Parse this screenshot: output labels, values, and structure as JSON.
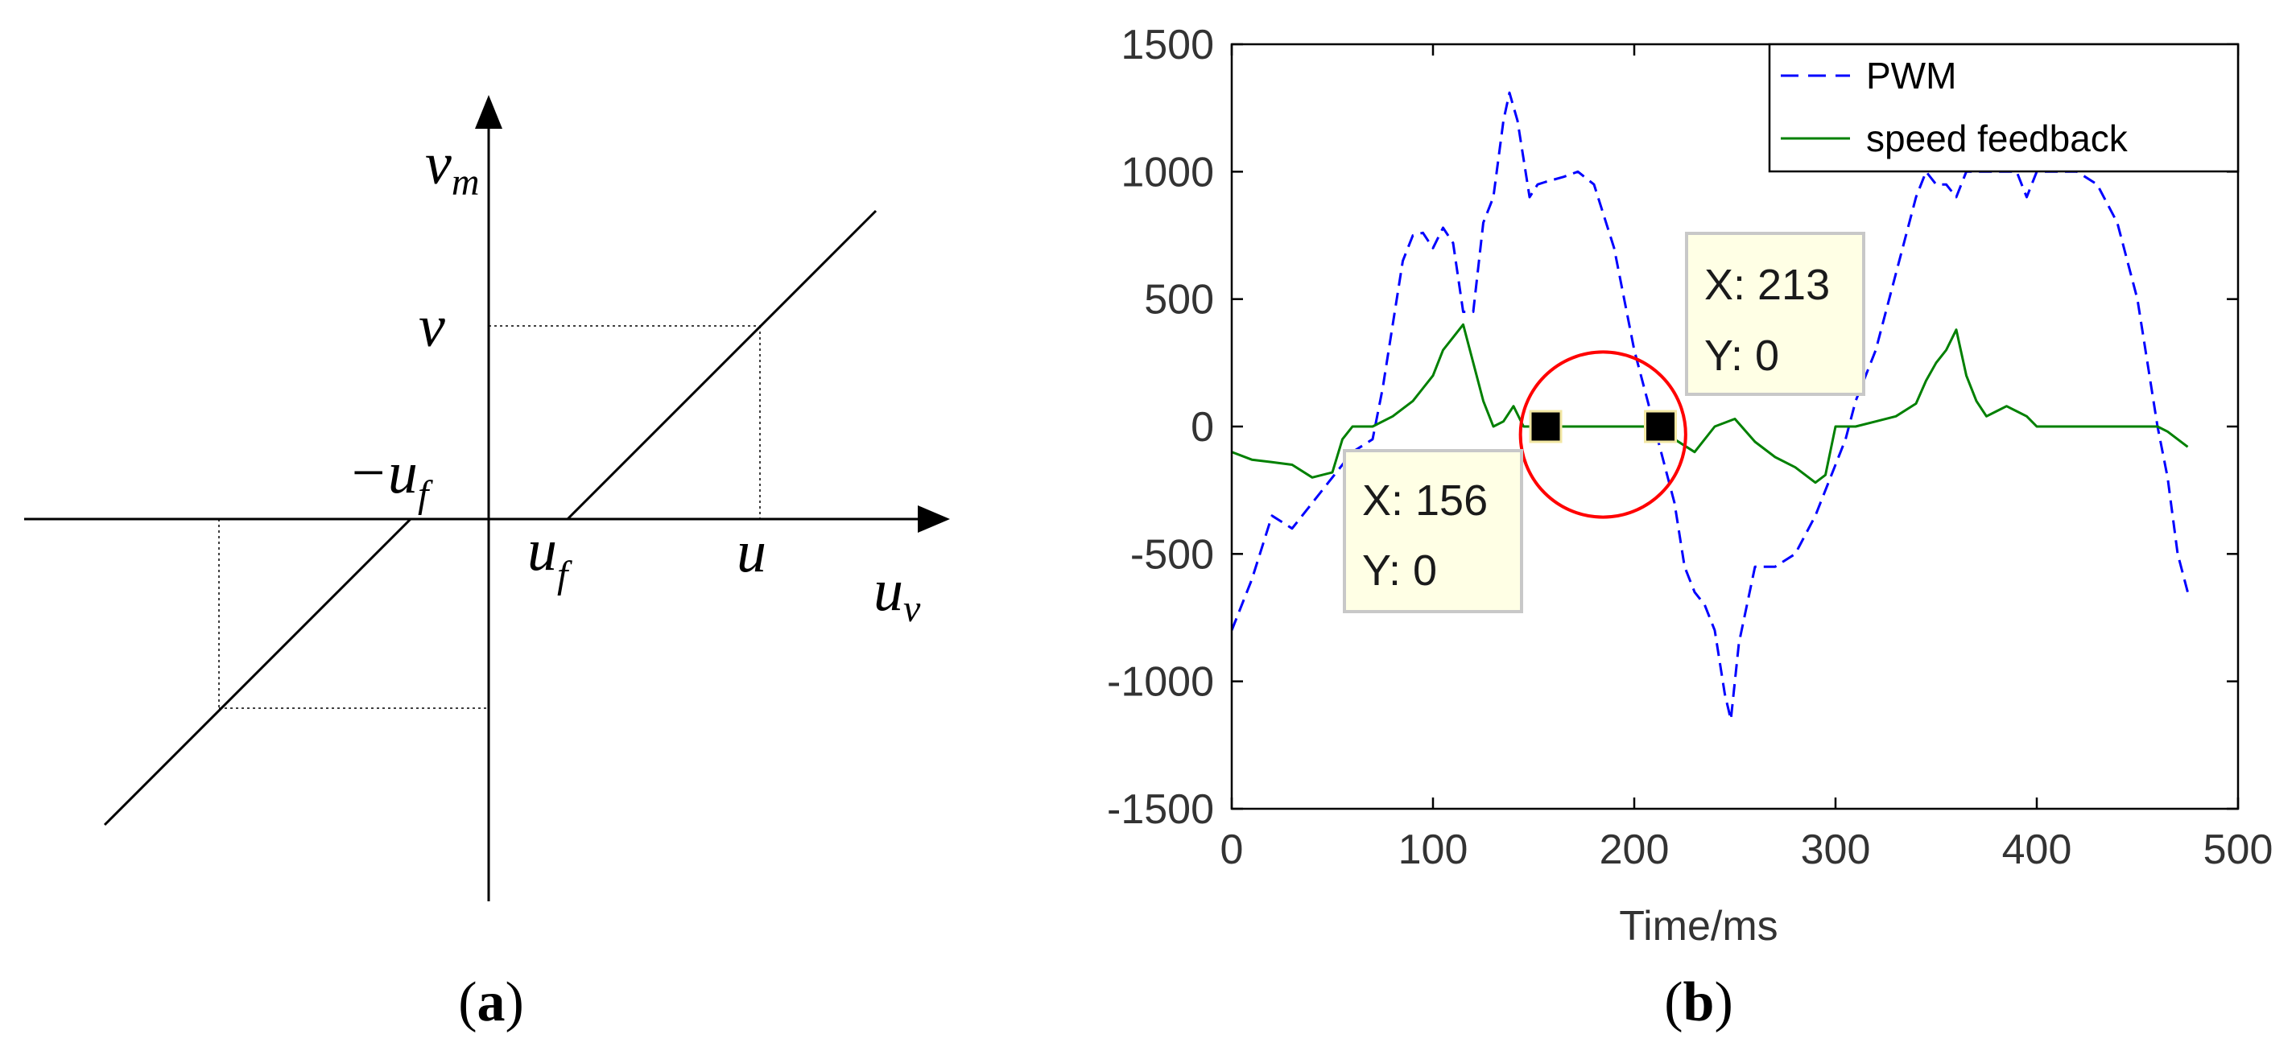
{
  "panel_a": {
    "caption": "a",
    "label_vm_main": "v",
    "label_vm_sub": "m",
    "label_uv_main": "u",
    "label_uv_sub": "v",
    "label_v": "v",
    "label_u": "u",
    "label_uf_main": "u",
    "label_uf_sub": "f",
    "label_neg_uf_main": "−u",
    "label_neg_uf_sub": "f"
  },
  "panel_b": {
    "caption": "b",
    "colors": {
      "pwm": "#0000ff",
      "speed": "#008000",
      "circle": "#ff0000"
    },
    "datatips": [
      {
        "x_line": "X: 156",
        "y_line": "Y: 0",
        "x": 156,
        "y": 0
      },
      {
        "x_line": "X: 213",
        "y_line": "Y: 0",
        "x": 213,
        "y": 0
      }
    ]
  },
  "chart_data": {
    "type": "line",
    "title": "",
    "xlabel": "Time/ms",
    "ylabel": "",
    "xlim": [
      0,
      500
    ],
    "ylim": [
      -1500,
      1500
    ],
    "xticks": [
      "0",
      "100",
      "200",
      "300",
      "400",
      "500"
    ],
    "yticks": [
      "1500",
      "1000",
      "500",
      "0",
      "-500",
      "-1000",
      "-1500"
    ],
    "legend": {
      "placement": "top-right"
    },
    "series": [
      {
        "name": "PWM",
        "style": "dashed",
        "x": [
          0,
          5,
          10,
          20,
          30,
          40,
          50,
          60,
          70,
          75,
          80,
          85,
          90,
          95,
          100,
          105,
          110,
          115,
          120,
          125,
          130,
          135,
          138,
          142,
          148,
          152,
          156,
          165,
          172,
          180,
          190,
          200,
          210,
          215,
          220,
          225,
          230,
          235,
          240,
          245,
          248,
          252,
          260,
          270,
          280,
          290,
          300,
          305,
          310,
          320,
          330,
          340,
          345,
          350,
          355,
          360,
          365,
          370,
          380,
          390,
          395,
          400,
          410,
          420,
          430,
          440,
          450,
          460,
          465,
          470,
          475
        ],
        "y": [
          -800,
          -700,
          -600,
          -350,
          -400,
          -300,
          -200,
          -100,
          -50,
          150,
          400,
          650,
          750,
          760,
          700,
          780,
          720,
          450,
          450,
          800,
          900,
          1200,
          1310,
          1200,
          900,
          950,
          960,
          980,
          1000,
          950,
          700,
          300,
          0,
          -150,
          -300,
          -550,
          -650,
          -700,
          -800,
          -1050,
          -1150,
          -850,
          -550,
          -550,
          -500,
          -350,
          -150,
          -50,
          100,
          300,
          600,
          900,
          1000,
          950,
          950,
          900,
          1000,
          1000,
          1000,
          1000,
          900,
          1000,
          1000,
          1000,
          950,
          800,
          500,
          0,
          -200,
          -500,
          -650
        ]
      },
      {
        "name": "speed feedback",
        "style": "solid",
        "x": [
          0,
          10,
          20,
          30,
          40,
          50,
          55,
          60,
          70,
          80,
          90,
          95,
          100,
          105,
          110,
          115,
          120,
          125,
          130,
          135,
          140,
          145,
          148,
          156,
          213,
          220,
          230,
          240,
          250,
          260,
          270,
          280,
          290,
          295,
          300,
          310,
          320,
          330,
          340,
          345,
          350,
          355,
          360,
          365,
          370,
          375,
          380,
          385,
          390,
          395,
          400,
          410,
          420,
          430,
          440,
          450,
          460,
          465,
          470,
          475
        ],
        "y": [
          -100,
          -130,
          -140,
          -150,
          -200,
          -180,
          -50,
          0,
          0,
          40,
          100,
          150,
          200,
          300,
          350,
          400,
          250,
          100,
          0,
          20,
          80,
          0,
          0,
          0,
          0,
          -50,
          -100,
          0,
          30,
          -60,
          -120,
          -160,
          -220,
          -190,
          0,
          0,
          20,
          40,
          90,
          180,
          250,
          300,
          380,
          200,
          100,
          40,
          60,
          80,
          60,
          40,
          0,
          0,
          0,
          0,
          0,
          0,
          0,
          -20,
          -50,
          -80
        ]
      }
    ]
  }
}
